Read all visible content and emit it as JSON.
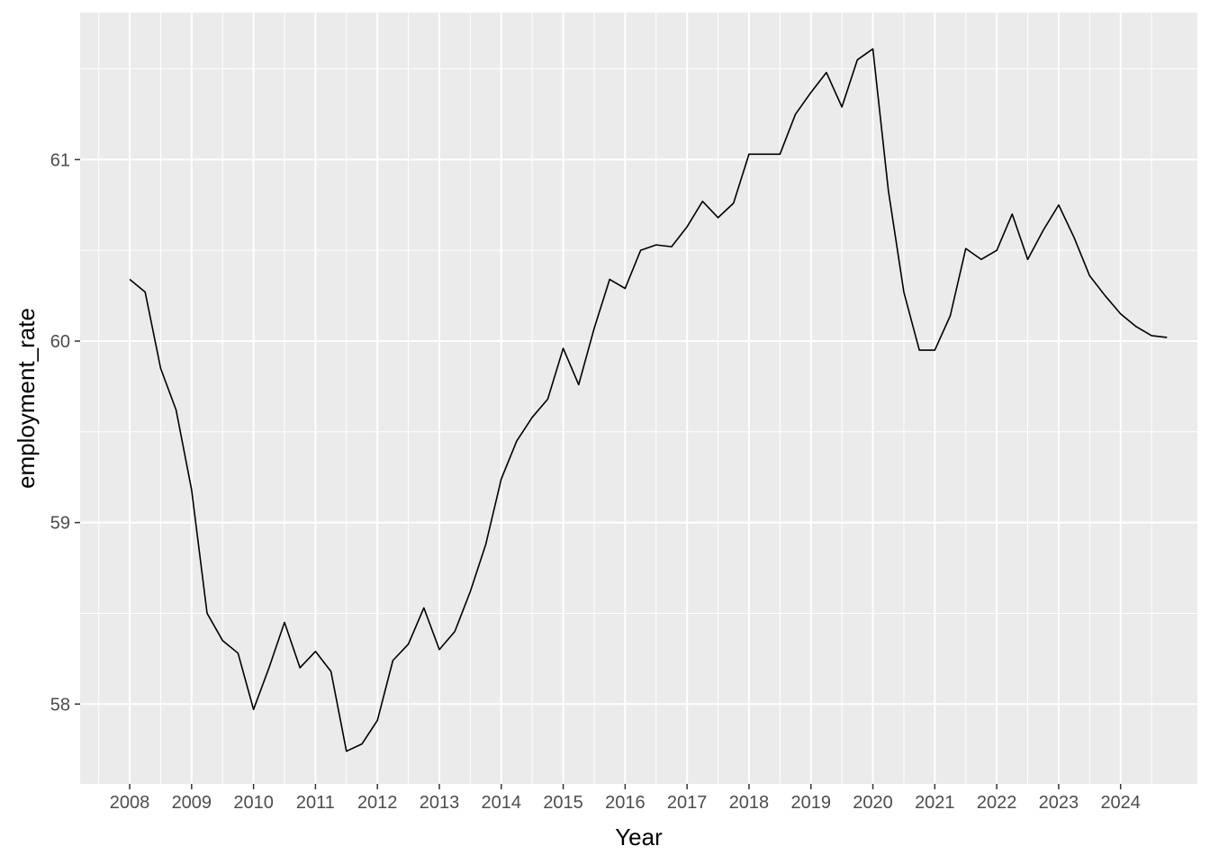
{
  "chart_data": {
    "type": "line",
    "title": "",
    "xlabel": "Year",
    "ylabel": "employment_rate",
    "xlim": [
      2007.2,
      2025.24
    ],
    "ylim": [
      57.56,
      61.81
    ],
    "x_ticks": [
      2008,
      2009,
      2010,
      2011,
      2012,
      2013,
      2014,
      2015,
      2016,
      2017,
      2018,
      2019,
      2020,
      2021,
      2022,
      2023,
      2024
    ],
    "y_ticks": [
      58,
      59,
      60,
      61
    ],
    "grid": true,
    "legend": "none",
    "colors": {
      "panel": "#ebebeb",
      "grid": "#ffffff",
      "line": "#000000",
      "tick_text": "#4d4d4d"
    },
    "series": [
      {
        "x": [
          2008.0,
          2008.25,
          2008.5,
          2008.75,
          2009.0,
          2009.25,
          2009.5,
          2009.75,
          2010.0,
          2010.25,
          2010.5,
          2010.75,
          2011.0,
          2011.25,
          2011.5,
          2011.75,
          2012.0,
          2012.25,
          2012.5,
          2012.75,
          2013.0,
          2013.25,
          2013.5,
          2013.75,
          2014.0,
          2014.25,
          2014.5,
          2014.75,
          2015.0,
          2015.25,
          2015.5,
          2015.75,
          2016.0,
          2016.25,
          2016.5,
          2016.75,
          2017.0,
          2017.25,
          2017.5,
          2017.75,
          2018.0,
          2018.25,
          2018.5,
          2018.75,
          2019.0,
          2019.25,
          2019.5,
          2019.75,
          2020.0,
          2020.25,
          2020.5,
          2020.75,
          2021.0,
          2021.25,
          2021.5,
          2021.75,
          2022.0,
          2022.25,
          2022.5,
          2022.75,
          2023.0,
          2023.25,
          2023.5,
          2023.75,
          2024.0,
          2024.25,
          2024.5,
          2024.75
        ],
        "values": [
          60.34,
          60.27,
          59.85,
          59.62,
          59.18,
          58.5,
          58.35,
          58.28,
          57.97,
          58.2,
          58.45,
          58.2,
          58.29,
          58.18,
          57.74,
          57.78,
          57.91,
          58.24,
          58.33,
          58.53,
          58.3,
          58.4,
          58.62,
          58.88,
          59.24,
          59.45,
          59.58,
          59.68,
          59.96,
          59.76,
          60.07,
          60.34,
          60.29,
          60.5,
          60.53,
          60.52,
          60.63,
          60.77,
          60.68,
          60.76,
          61.03,
          61.03,
          61.03,
          61.25,
          61.37,
          61.48,
          61.29,
          61.55,
          61.61,
          60.83,
          60.27,
          59.95,
          59.95,
          60.14,
          60.51,
          60.45,
          60.5,
          60.7,
          60.45,
          60.61,
          60.75,
          60.57,
          60.36,
          60.25,
          60.15,
          60.08,
          60.03,
          60.02
        ]
      }
    ]
  }
}
